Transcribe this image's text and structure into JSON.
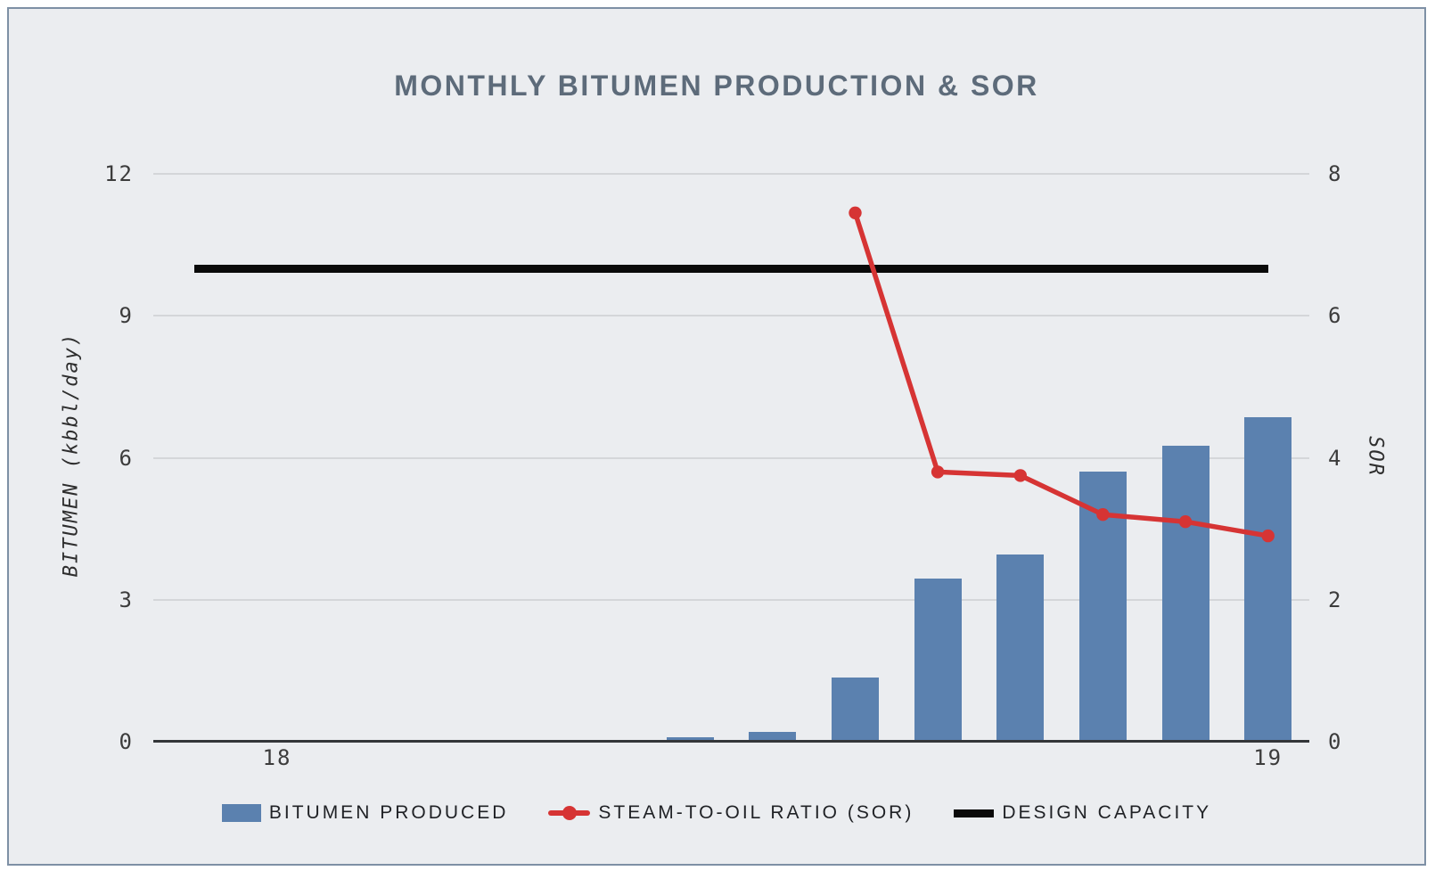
{
  "chart_data": {
    "type": "combo",
    "title": "MONTHLY BITUMEN PRODUCTION & SOR",
    "grid": "horizontal",
    "legend_position": "bottom-center",
    "x_axis": {
      "slot_count": 14,
      "ticks": [
        {
          "slot": 2,
          "label": "18"
        },
        {
          "slot": 14,
          "label": "19"
        }
      ]
    },
    "left_axis": {
      "label": "BITUMEN (kbbl/day)",
      "range": [
        0,
        12
      ],
      "ticks": [
        0,
        3,
        6,
        9,
        12
      ]
    },
    "right_axis": {
      "label": "SOR",
      "range": [
        0,
        8
      ],
      "ticks": [
        0,
        2,
        4,
        6,
        8
      ]
    },
    "series": [
      {
        "name": "BITUMEN PRODUCED",
        "type": "bar",
        "axis": "left",
        "color": "#5b81af",
        "values": [
          null,
          null,
          null,
          null,
          null,
          null,
          0.1,
          0.2,
          1.35,
          3.45,
          3.95,
          5.7,
          6.25,
          6.85
        ]
      },
      {
        "name": "STEAM-TO-OIL RATIO (SOR)",
        "type": "line",
        "axis": "right",
        "color": "#d63434",
        "values": [
          null,
          null,
          null,
          null,
          null,
          null,
          null,
          null,
          7.45,
          3.8,
          3.75,
          3.2,
          3.1,
          2.9
        ]
      },
      {
        "name": "DESIGN CAPACITY",
        "type": "constant-line",
        "axis": "left",
        "color": "#0a0a0a",
        "value": 10,
        "span_slots": [
          1,
          14
        ]
      }
    ]
  },
  "theme": {
    "panel_background": "#ebedf0",
    "panel_border": "#7e90a5",
    "title_color": "#5d6b7a",
    "gridline_color": "#d4d6d9",
    "baseline_color": "#333639",
    "tick_color": "#3c3c3c"
  }
}
